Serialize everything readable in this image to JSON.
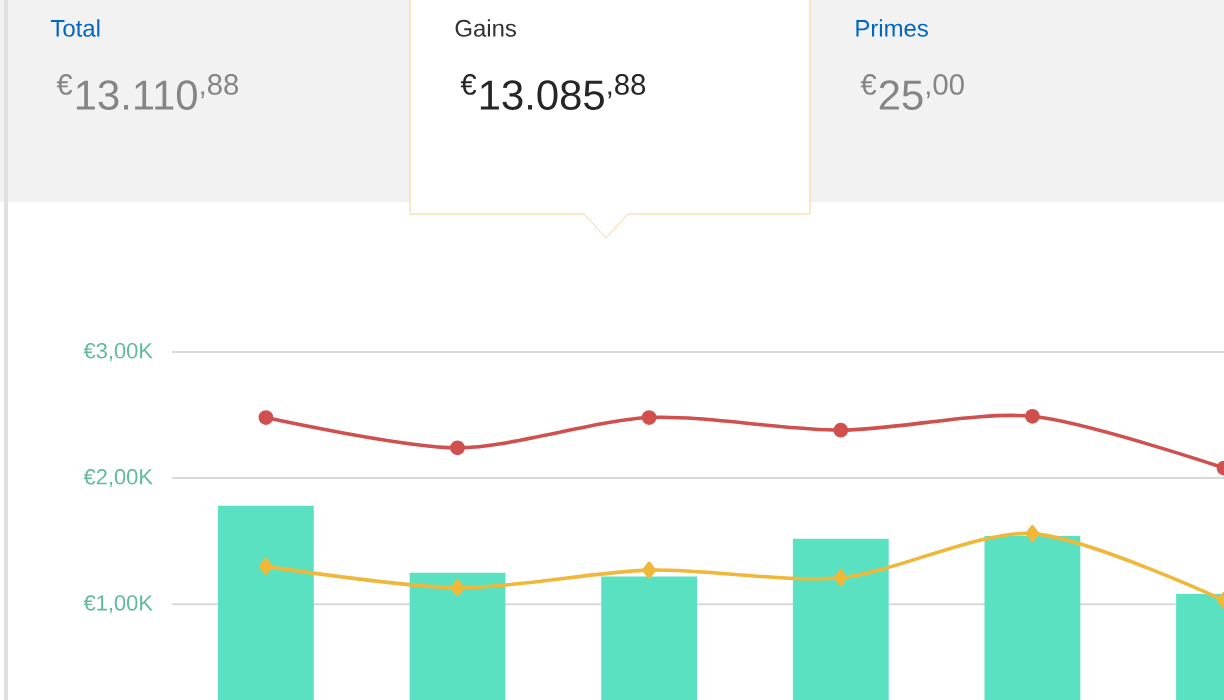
{
  "chart_data": {
    "type": "bar",
    "annotations": [
      "Total",
      "$^{€}$13.110$^{,88}$",
      "Gains",
      "$^{€}$13.085$^{,88}$",
      "Primes",
      "$^{€}$25$^{,00}$"
    ],
    "categories": [
      null,
      null,
      null,
      null,
      null,
      null
    ],
    "series": [
      {
        "color": "#5ae1c1",
        "values": [
          1.78,
          1.25,
          1.22,
          1.52,
          1.54,
          1.08
        ]
      },
      {
        "type": "line",
        "color": "#d04f4f",
        "marker": "circle",
        "line_style": "solid",
        "values": [
          2.48,
          2.24,
          2.48,
          2.38,
          2.49,
          2.08
        ]
      },
      {
        "type": "line",
        "color": "#f0b83a",
        "marker": "diamond",
        "line_style": "solid",
        "values": [
          1.3,
          1.13,
          1.27,
          1.21,
          1.56,
          1.03
        ]
      }
    ],
    "ylim": [
      0.24,
      3
    ],
    "yticks": [
      {
        "value": 1,
        "label": "€1,00K"
      },
      {
        "value": 2,
        "label": "€2,00K"
      },
      {
        "value": 3,
        "label": "€3,00K"
      }
    ],
    "grid": "y",
    "tick_labels": "y"
  }
}
